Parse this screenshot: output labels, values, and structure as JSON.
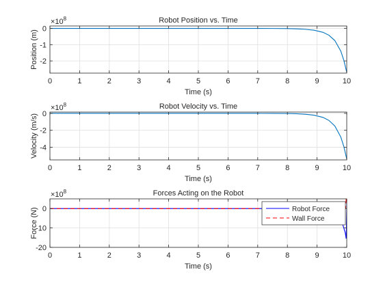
{
  "chart_data": [
    {
      "type": "line",
      "title": "Robot Position vs. Time",
      "xlabel": "Time (s)",
      "ylabel": "Position (m)",
      "y_exponent": "×10",
      "y_exponent_power": "8",
      "xlim": [
        0,
        10
      ],
      "ylim": [
        -2.75,
        0.15
      ],
      "xticks": [
        "0",
        "1",
        "2",
        "3",
        "4",
        "5",
        "6",
        "7",
        "8",
        "9",
        "10"
      ],
      "yticks": [
        {
          "value": 0,
          "label": "0"
        },
        {
          "value": -1,
          "label": "-1"
        },
        {
          "value": -2,
          "label": "-2"
        }
      ],
      "grid": true,
      "series": [
        {
          "color": "#0072BD",
          "dash": "solid",
          "points": [
            [
              0,
              0
            ],
            [
              6,
              0
            ],
            [
              7,
              0
            ],
            [
              7.5,
              -0.002
            ],
            [
              8,
              -0.01
            ],
            [
              8.3,
              -0.025
            ],
            [
              8.6,
              -0.055
            ],
            [
              8.9,
              -0.11
            ],
            [
              9.2,
              -0.24
            ],
            [
              9.4,
              -0.42
            ],
            [
              9.6,
              -0.75
            ],
            [
              9.8,
              -1.4
            ],
            [
              9.9,
              -1.95
            ],
            [
              10,
              -2.7
            ]
          ]
        }
      ]
    },
    {
      "type": "line",
      "title": "Robot Velocity vs. Time",
      "xlabel": "Time (s)",
      "ylabel": "Velocity (m/s)",
      "y_exponent": "×10",
      "y_exponent_power": "8",
      "xlim": [
        0,
        10
      ],
      "ylim": [
        -5.5,
        0.15
      ],
      "xticks": [
        "0",
        "1",
        "2",
        "3",
        "4",
        "5",
        "6",
        "7",
        "8",
        "9",
        "10"
      ],
      "yticks": [
        {
          "value": 0,
          "label": "0"
        },
        {
          "value": -2,
          "label": "-2"
        },
        {
          "value": -4,
          "label": "-4"
        }
      ],
      "grid": true,
      "series": [
        {
          "color": "#0072BD",
          "dash": "solid",
          "points": [
            [
              0,
              0
            ],
            [
              6,
              0
            ],
            [
              7,
              0
            ],
            [
              7.5,
              -0.005
            ],
            [
              8,
              -0.02
            ],
            [
              8.3,
              -0.05
            ],
            [
              8.6,
              -0.11
            ],
            [
              8.9,
              -0.22
            ],
            [
              9.2,
              -0.48
            ],
            [
              9.4,
              -0.84
            ],
            [
              9.6,
              -1.5
            ],
            [
              9.8,
              -2.8
            ],
            [
              9.9,
              -3.9
            ],
            [
              10,
              -5.4
            ]
          ]
        }
      ]
    },
    {
      "type": "line",
      "title": "Forces Acting on the Robot",
      "xlabel": "Time (s)",
      "ylabel": "Force (N)",
      "y_exponent": "×10",
      "y_exponent_power": "8",
      "xlim": [
        0,
        10
      ],
      "ylim": [
        -20,
        5
      ],
      "xticks": [
        "0",
        "1",
        "2",
        "3",
        "4",
        "5",
        "6",
        "7",
        "8",
        "9",
        "10"
      ],
      "yticks": [
        {
          "value": 0,
          "label": "0"
        },
        {
          "value": -10,
          "label": "-10"
        },
        {
          "value": -20,
          "label": "-20"
        }
      ],
      "grid": true,
      "legend_position": "top-right",
      "series": [
        {
          "name": "Robot Force",
          "color": "#0000FF",
          "dash": "solid",
          "points": [
            [
              0,
              0
            ],
            [
              7,
              0
            ],
            [
              8,
              -0.05
            ],
            [
              8.5,
              -0.15
            ],
            [
              9,
              -0.5
            ],
            [
              9.3,
              -1.1
            ],
            [
              9.5,
              -2.0
            ],
            [
              9.7,
              -4.0
            ],
            [
              9.85,
              -7.5
            ],
            [
              9.95,
              -12.5
            ],
            [
              9.98,
              -15.5
            ],
            [
              10,
              -0.5
            ],
            [
              10,
              4.5
            ]
          ]
        },
        {
          "name": "Wall Force",
          "color": "#FF0000",
          "dash": "dashed",
          "points": [
            [
              0,
              0
            ],
            [
              9.96,
              0
            ],
            [
              9.98,
              4.8
            ],
            [
              10,
              4.8
            ]
          ]
        }
      ]
    }
  ]
}
